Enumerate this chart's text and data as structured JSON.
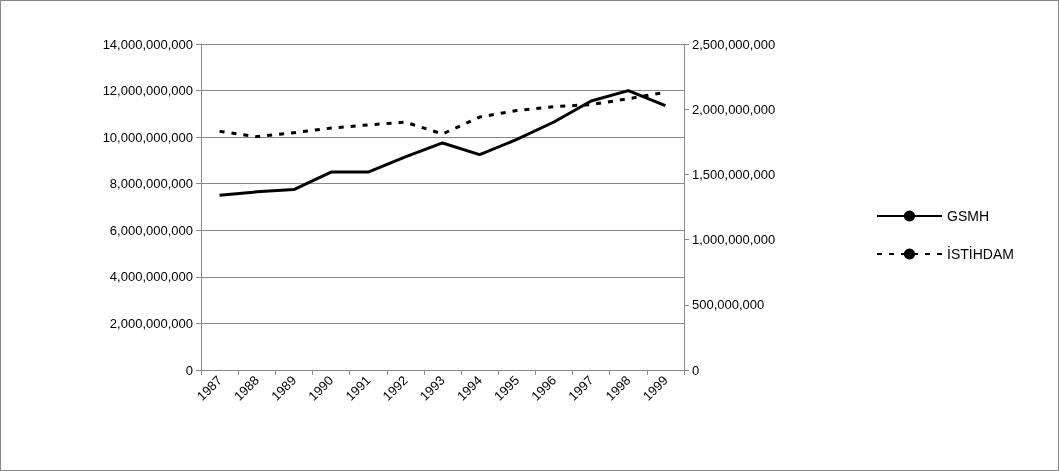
{
  "chart_data": {
    "type": "line",
    "categories": [
      "1987",
      "1988",
      "1989",
      "1990",
      "1991",
      "1992",
      "1993",
      "1994",
      "1995",
      "1996",
      "1997",
      "1998",
      "1999"
    ],
    "series": [
      {
        "name": "GSMH",
        "color": "#000000",
        "line_style": "solid",
        "values": [
          7500000000,
          7650000000,
          7750000000,
          8500000000,
          8500000000,
          9150000000,
          9750000000,
          9250000000,
          9900000000,
          10650000000,
          11550000000,
          12000000000,
          11350000000
        ]
      },
      {
        "name": "İSTİHDAM",
        "color": "#000000",
        "line_style": "dashed",
        "axis": "y2",
        "values": [
          1830000000,
          1790000000,
          1820000000,
          1855000000,
          1880000000,
          1900000000,
          1810000000,
          1940000000,
          1990000000,
          2020000000,
          2035000000,
          2080000000,
          2130000000
        ]
      }
    ],
    "ylim": [
      0,
      14000000000
    ],
    "yticks": [
      0,
      {
        "value": 2000000000,
        "label": "2,000,000,000"
      },
      {
        "value": 4000000000,
        "label": "4,000,000,000"
      },
      {
        "value": 6000000000,
        "label": "6,000,000,000"
      },
      {
        "value": 8000000000,
        "label": "8,000,000,000"
      },
      {
        "value": 10000000000,
        "label": "10,000,000,000"
      },
      {
        "value": 12000000000,
        "label": "12,000,000,000"
      },
      {
        "value": 14000000000,
        "label": "14,000,000,000"
      }
    ],
    "y2lim": [
      0,
      2500000000
    ],
    "y2ticks": [
      0,
      {
        "value": 500000000,
        "label": "500,000,000"
      },
      {
        "value": 1000000000,
        "label": "1,000,000,000"
      },
      {
        "value": 1500000000,
        "label": "1,500,000,000"
      },
      {
        "value": 2000000000,
        "label": "2,000,000,000"
      },
      {
        "value": 2500000000,
        "label": "2,500,000,000"
      }
    ],
    "grid": "y",
    "legend": "right",
    "marker": "none"
  }
}
